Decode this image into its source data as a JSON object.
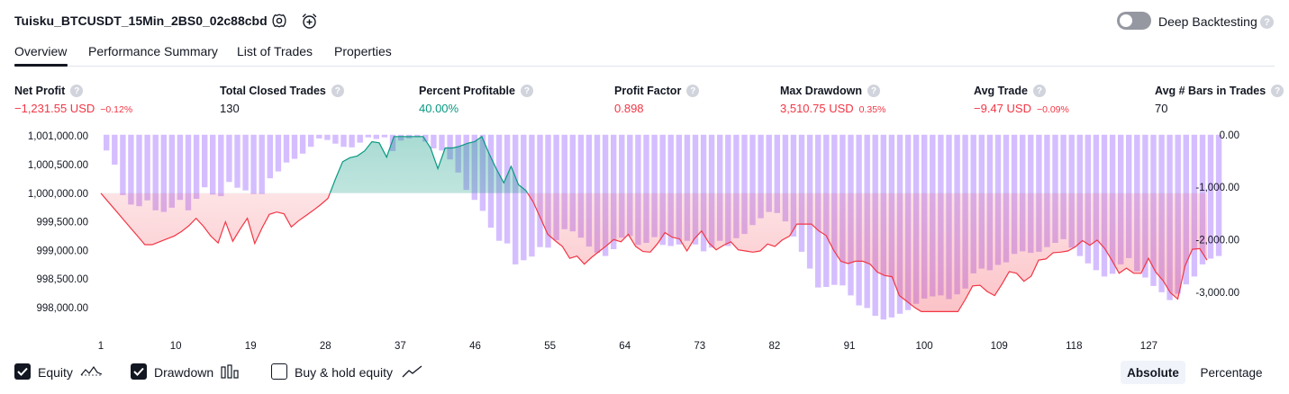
{
  "header": {
    "strategy_title": "Tuisku_BTCUSDT_15Min_2BS0_02c88cbd",
    "deep_backtesting_label": "Deep Backtesting",
    "deep_backtesting_enabled": false,
    "help_glyph": "?"
  },
  "tabs": [
    {
      "label": "Overview",
      "active": true
    },
    {
      "label": "Performance Summary",
      "active": false
    },
    {
      "label": "List of Trades",
      "active": false
    },
    {
      "label": "Properties",
      "active": false
    }
  ],
  "metrics": [
    {
      "label": "Net Profit",
      "value": "−1,231.55 USD",
      "pct": "−0.12%",
      "color": "#f23645"
    },
    {
      "label": "Total Closed Trades",
      "value": "130",
      "pct": "",
      "color": "#131722"
    },
    {
      "label": "Percent Profitable",
      "value": "40.00%",
      "pct": "",
      "color": "#089981"
    },
    {
      "label": "Profit Factor",
      "value": "0.898",
      "pct": "",
      "color": "#f23645"
    },
    {
      "label": "Max Drawdown",
      "value": "3,510.75 USD",
      "pct": "0.35%",
      "color": "#f23645"
    },
    {
      "label": "Avg Trade",
      "value": "−9.47 USD",
      "pct": "−0.09%",
      "color": "#f23645"
    },
    {
      "label": "Avg # Bars in Trades",
      "value": "70",
      "pct": "",
      "color": "#131722"
    }
  ],
  "controls": {
    "equity_label": "Equity",
    "equity_checked": true,
    "drawdown_label": "Drawdown",
    "drawdown_checked": true,
    "buyhold_label": "Buy & hold equity",
    "buyhold_checked": false,
    "absolute_label": "Absolute",
    "percentage_label": "Percentage",
    "selected_mode": "Absolute"
  },
  "chart_data": {
    "type": "area",
    "title": "",
    "xlabel": "",
    "ylabel": "",
    "baseline": 1000000,
    "left_axis_ticks": [
      "1,001,000.00",
      "1,000,500.00",
      "1,000,000.00",
      "999,500.00",
      "999,000.00",
      "998,500.00",
      "998,000.00"
    ],
    "left_axis_values": [
      1001000,
      1000500,
      1000000,
      999500,
      999000,
      998500,
      998000
    ],
    "left_ylim": [
      997700,
      1001050
    ],
    "right_axis_ticks": [
      "0.00",
      "-1,000.00",
      "-2,000.00",
      "-3,000.00"
    ],
    "right_axis_values": [
      0,
      -1000,
      -2000,
      -3000
    ],
    "right_ylim": [
      -3620,
      30
    ],
    "x_ticks": [
      "1",
      "10",
      "19",
      "28",
      "37",
      "46",
      "55",
      "64",
      "73",
      "82",
      "91",
      "100",
      "109",
      "118",
      "127"
    ],
    "x_tick_values": [
      1,
      10,
      19,
      28,
      37,
      46,
      55,
      64,
      73,
      82,
      91,
      100,
      109,
      118,
      127
    ],
    "xlim": [
      1,
      134
    ],
    "series": [
      {
        "name": "Equity",
        "up_color": "#089981",
        "down_color": "#f23645",
        "values": [
          1000000,
          999850,
          999700,
          999550,
          999400,
          999250,
          999100,
          999100,
          999150,
          999200,
          999250,
          999330,
          999430,
          999560,
          999420,
          999250,
          999130,
          999500,
          999160,
          999370,
          999560,
          999120,
          999390,
          999630,
          999670,
          999640,
          999410,
          999520,
          999610,
          999700,
          999800,
          999910,
          1000240,
          1000550,
          1000620,
          1000650,
          1000740,
          1000900,
          1000880,
          1000630,
          1000990,
          1000990,
          1000990,
          1000990,
          1000990,
          1000790,
          1000430,
          1000790,
          1000790,
          1000820,
          1000870,
          1000900,
          1000990,
          1000690,
          1000420,
          1000180,
          1000470,
          1000150,
          1000050,
          999850,
          999570,
          999280,
          999170,
          999070,
          998860,
          998900,
          998760,
          998880,
          998980,
          999080,
          999190,
          999150,
          999280,
          999070,
          998980,
          998970,
          999120,
          999310,
          999230,
          999200,
          998990,
          999200,
          999340,
          999130,
          999010,
          999090,
          999150,
          999010,
          998990,
          998970,
          998990,
          999110,
          999070,
          999180,
          999250,
          999460,
          999460,
          999460,
          999340,
          999260,
          999010,
          998810,
          998770,
          998810,
          998810,
          998760,
          998620,
          998560,
          998540,
          998210,
          998110,
          998010,
          997930,
          997930,
          997930,
          997930,
          997930,
          997930,
          998140,
          998380,
          998390,
          998280,
          998210,
          998410,
          998630,
          998600,
          998460,
          998550,
          998830,
          998850,
          998960,
          998970,
          998990,
          999060,
          999170,
          999090,
          999180,
          999040,
          998830,
          998600,
          998690,
          998600,
          998600,
          998860,
          998620,
          998470,
          998260,
          998150,
          998730,
          999020,
          999030,
          998830
        ]
      },
      {
        "name": "Drawdown",
        "color": "#b388ff",
        "values": [
          -300,
          -570,
          -1150,
          -1330,
          -1360,
          -1250,
          -1440,
          -1470,
          -1390,
          -1240,
          -1440,
          -1220,
          -1000,
          -1140,
          -1170,
          -900,
          -1010,
          -1060,
          -1130,
          -1130,
          -830,
          -700,
          -530,
          -460,
          -360,
          -230,
          -70,
          -100,
          -170,
          -230,
          -240,
          -150,
          -50,
          -80,
          -50,
          -310,
          -110,
          -70,
          -50,
          -130,
          -260,
          -300,
          -470,
          -720,
          -1050,
          -1240,
          -1450,
          -1770,
          -2020,
          -2070,
          -2470,
          -2390,
          -2320,
          -2140,
          -2150,
          -2010,
          -1800,
          -1840,
          -1960,
          -2130,
          -2250,
          -2310,
          -2180,
          -1960,
          -1930,
          -2100,
          -2060,
          -1950,
          -2100,
          -2120,
          -2090,
          -2020,
          -2090,
          -2220,
          -2150,
          -2020,
          -2120,
          -1970,
          -1890,
          -1720,
          -1590,
          -1470,
          -1490,
          -1650,
          -1940,
          -2230,
          -2550,
          -2910,
          -2900,
          -2860,
          -2870,
          -3060,
          -3250,
          -3300,
          -3450,
          -3520,
          -3480,
          -3410,
          -3340,
          -3220,
          -3120,
          -3080,
          -3060,
          -3130,
          -3040,
          -2930,
          -2640,
          -2550,
          -2580,
          -2480,
          -2430,
          -2270,
          -2220,
          -2250,
          -2230,
          -2140,
          -2060,
          -1990,
          -2150,
          -2310,
          -2450,
          -2580,
          -2700,
          -2650,
          -2470,
          -2350,
          -2600,
          -2720,
          -2880,
          -3000,
          -3150,
          -3030,
          -2850,
          -2700,
          -2470,
          -2360,
          -2310
        ]
      }
    ]
  }
}
